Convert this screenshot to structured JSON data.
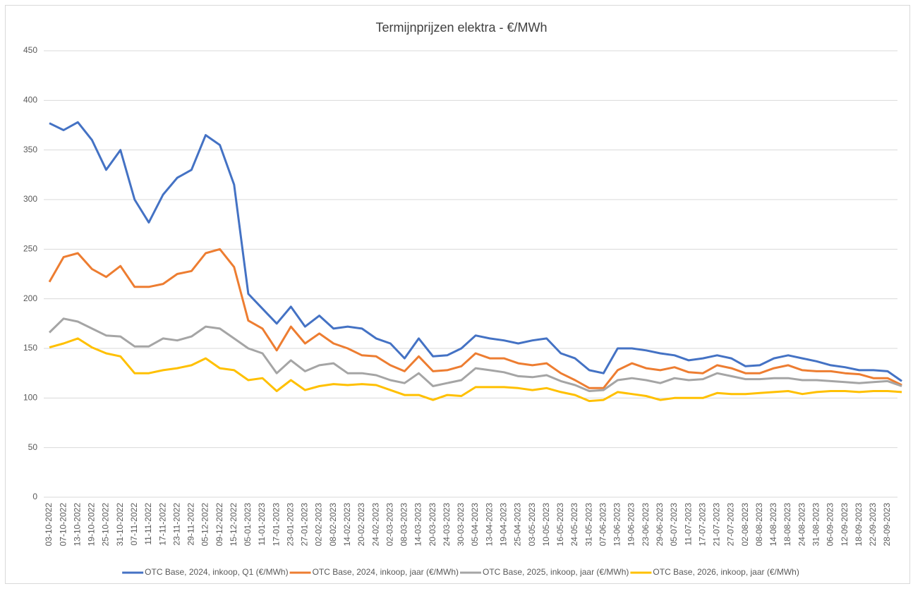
{
  "chart_data": {
    "type": "line",
    "title": "Termijnprijzen elektra - €/MWh",
    "categories": [
      "03-10-2022",
      "07-10-2022",
      "13-10-2022",
      "19-10-2022",
      "25-10-2022",
      "31-10-2022",
      "07-11-2022",
      "11-11-2022",
      "17-11-2022",
      "23-11-2022",
      "29-11-2022",
      "05-12-2022",
      "09-12-2022",
      "15-12-2022",
      "05-01-2023",
      "11-01-2023",
      "17-01-2023",
      "23-01-2023",
      "27-01-2023",
      "02-02-2023",
      "08-02-2023",
      "14-02-2023",
      "20-02-2023",
      "24-02-2023",
      "02-03-2023",
      "08-03-2023",
      "14-03-2023",
      "20-03-2023",
      "24-03-2023",
      "30-03-2023",
      "05-04-2023",
      "13-04-2023",
      "19-04-2023",
      "25-04-2023",
      "03-05-2023",
      "10-05-2023",
      "16-05-2023",
      "24-05-2023",
      "31-05-2023",
      "07-06-2023",
      "13-06-2023",
      "19-06-2023",
      "23-06-2023",
      "29-06-2023",
      "05-07-2023",
      "11-07-2023",
      "17-07-2023",
      "21-07-2023",
      "27-07-2023",
      "02-08-2023",
      "08-08-2023",
      "14-08-2023",
      "18-08-2023",
      "24-08-2023",
      "31-08-2023",
      "06-09-2023",
      "12-09-2023",
      "18-09-2023",
      "22-09-2023",
      "28-09-2023",
      null
    ],
    "series": [
      {
        "name": "OTC Base, 2024, inkoop, Q1 (€/MWh)",
        "color": "#4472c4",
        "values": [
          377,
          370,
          378,
          360,
          330,
          350,
          300,
          277,
          305,
          322,
          330,
          365,
          355,
          315,
          205,
          190,
          175,
          192,
          172,
          183,
          170,
          172,
          170,
          160,
          155,
          140,
          160,
          142,
          143,
          150,
          163,
          160,
          158,
          155,
          158,
          160,
          145,
          140,
          128,
          125,
          150,
          150,
          148,
          145,
          143,
          138,
          140,
          143,
          140,
          132,
          133,
          140,
          143,
          140,
          137,
          133,
          131,
          128,
          128,
          127,
          117
        ]
      },
      {
        "name": "OTC Base, 2024, inkoop, jaar (€/MWh)",
        "color": "#ed7d31",
        "values": [
          217,
          242,
          246,
          230,
          222,
          233,
          212,
          212,
          215,
          225,
          228,
          246,
          250,
          232,
          178,
          170,
          148,
          172,
          155,
          165,
          155,
          150,
          143,
          142,
          133,
          127,
          142,
          127,
          128,
          132,
          145,
          140,
          140,
          135,
          133,
          135,
          125,
          118,
          110,
          110,
          128,
          135,
          130,
          128,
          131,
          126,
          125,
          133,
          130,
          125,
          125,
          130,
          133,
          128,
          127,
          127,
          125,
          124,
          120,
          120,
          113
        ]
      },
      {
        "name": "OTC Base, 2025, inkoop, jaar (€/MWh)",
        "color": "#a5a5a5",
        "values": [
          166,
          180,
          177,
          170,
          163,
          162,
          152,
          152,
          160,
          158,
          162,
          172,
          170,
          160,
          150,
          145,
          125,
          138,
          127,
          133,
          135,
          125,
          125,
          123,
          118,
          115,
          125,
          112,
          115,
          118,
          130,
          128,
          126,
          122,
          121,
          123,
          117,
          113,
          107,
          108,
          118,
          120,
          118,
          115,
          120,
          118,
          119,
          125,
          122,
          119,
          119,
          120,
          120,
          118,
          118,
          117,
          116,
          115,
          116,
          117,
          112
        ]
      },
      {
        "name": "OTC Base, 2026, inkoop, jaar (€/MWh)",
        "color": "#ffc000",
        "values": [
          151,
          155,
          160,
          151,
          145,
          142,
          125,
          125,
          128,
          130,
          133,
          140,
          130,
          128,
          118,
          120,
          107,
          118,
          108,
          112,
          114,
          113,
          114,
          113,
          108,
          103,
          103,
          98,
          103,
          102,
          111,
          111,
          111,
          110,
          108,
          110,
          106,
          103,
          97,
          98,
          106,
          104,
          102,
          98,
          100,
          100,
          100,
          105,
          104,
          104,
          105,
          106,
          107,
          104,
          106,
          107,
          107,
          106,
          107,
          107,
          106
        ]
      }
    ],
    "ylim": [
      0,
      450
    ],
    "yticks": [
      0,
      50,
      100,
      150,
      200,
      250,
      300,
      350,
      400,
      450
    ],
    "grid": true,
    "legend": "bottom"
  }
}
